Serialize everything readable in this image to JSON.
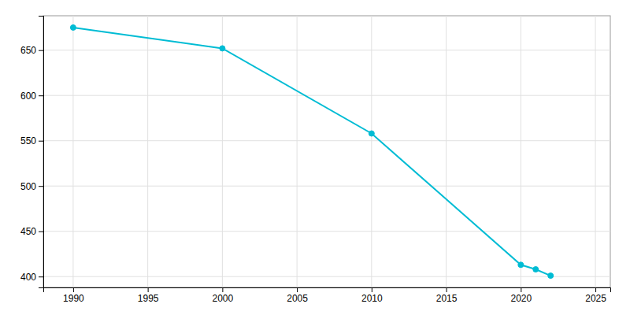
{
  "chart_data": {
    "type": "line",
    "x": [
      1990,
      2000,
      2010,
      2020,
      2021,
      2022
    ],
    "values": [
      675,
      652,
      558,
      413,
      408,
      401
    ],
    "color": "#00bcd4",
    "marker": "circle",
    "xlim": [
      1988,
      2026
    ],
    "ylim": [
      388,
      688
    ],
    "xticks": [
      1990,
      1995,
      2000,
      2005,
      2010,
      2015,
      2020,
      2025
    ],
    "yticks": [
      400,
      450,
      500,
      550,
      600,
      650
    ],
    "grid": true
  }
}
